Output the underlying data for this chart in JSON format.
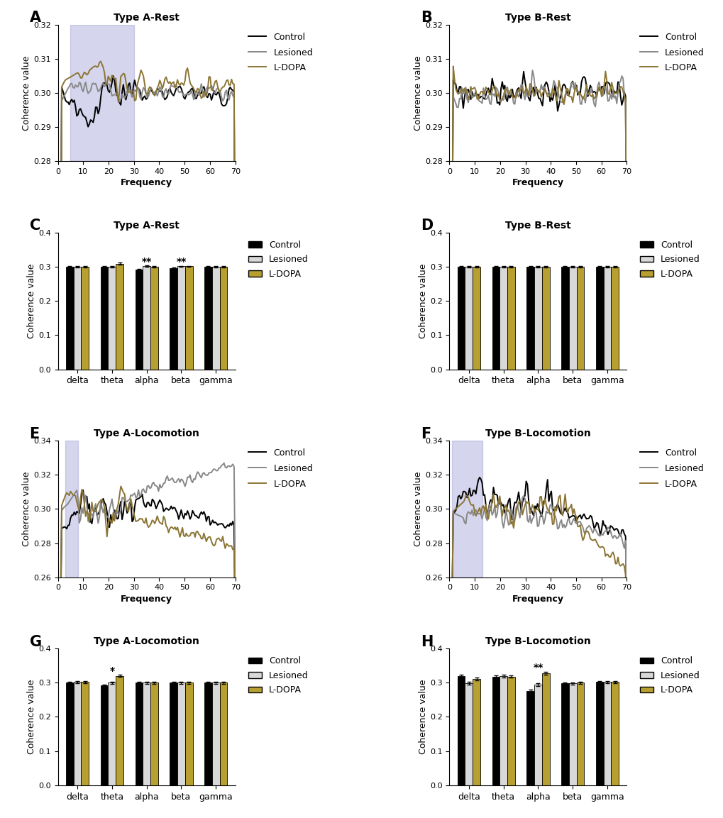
{
  "line_colors": {
    "Control": "#000000",
    "Lesioned": "#888888",
    "L-DOPA": "#8B7535"
  },
  "bar_colors": {
    "Control": "#000000",
    "Lesioned": "#D8D8D8",
    "L-DOPA": "#B8A030"
  },
  "highlight_color": "#8888CC",
  "highlight_alpha": 0.35,
  "bar_categories": [
    "delta",
    "theta",
    "alpha",
    "beta",
    "gamma"
  ],
  "lw": 1.4,
  "A_highlight": [
    5,
    30
  ],
  "E_highlight": [
    3,
    8
  ],
  "F_highlight": [
    1,
    13
  ]
}
